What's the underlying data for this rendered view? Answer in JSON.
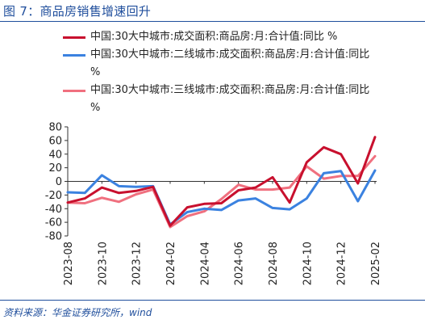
{
  "figure": {
    "title": "图 7：商品房销售增速回升",
    "source": "资料来源：华金证券研究所，wind"
  },
  "chart_data": {
    "type": "line",
    "title": "",
    "xlabel": "",
    "ylabel": "",
    "ylim": [
      -80,
      80
    ],
    "yticks": [
      -80,
      -60,
      -40,
      -20,
      0,
      20,
      40,
      60,
      80
    ],
    "x": [
      "2023-08",
      "2023-09",
      "2023-10",
      "2023-11",
      "2023-12",
      "2024-01",
      "2024-02",
      "2024-03",
      "2024-04",
      "2024-05",
      "2024-06",
      "2024-07",
      "2024-08",
      "2024-09",
      "2024-10",
      "2024-11",
      "2024-12",
      "2025-01",
      "2025-02"
    ],
    "xtick_labels": [
      "2023-08",
      "2023-10",
      "2023-12",
      "2024-02",
      "2024-04",
      "2024-06",
      "2024-08",
      "2024-10",
      "2024-12",
      "2025-02"
    ],
    "legend_position": "top",
    "series": [
      {
        "name": "中国:30大中城市:成交面积:商品房:月:合计值:同比 %",
        "color": "#c8102e",
        "values": [
          -31,
          -25,
          -9,
          -17,
          -14,
          -8,
          -65,
          -38,
          -33,
          -32,
          -13,
          -9,
          6,
          -31,
          28,
          50,
          40,
          -3,
          65
        ]
      },
      {
        "name": "中国:30大中城市:二线城市:成交面积:商品房:月:合计值:同比 %",
        "color": "#3b82e0",
        "values": [
          -16,
          -17,
          9,
          -7,
          -8,
          -7,
          -63,
          -45,
          -40,
          -42,
          -28,
          -25,
          -39,
          -41,
          -25,
          12,
          15,
          -29,
          16
        ]
      },
      {
        "name": "中国:30大中城市:三线城市:成交面积:商品房:月:合计值:同比 %",
        "color": "#f0707f",
        "values": [
          -31,
          -32,
          -24,
          -30,
          -19,
          -12,
          -67,
          -51,
          -44,
          -26,
          -5,
          -12,
          -12,
          -9,
          22,
          4,
          8,
          8,
          37
        ]
      }
    ]
  }
}
